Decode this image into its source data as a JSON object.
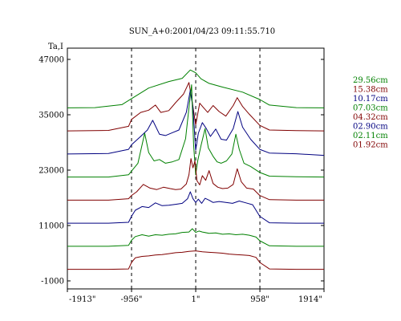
{
  "chart_data": {
    "type": "line",
    "title": "SUN_A+0:2001/04/23 09:11:55.710",
    "ylabel": "Ta,I",
    "xlabel": "",
    "xlim": [
      -1913,
      1914
    ],
    "ylim": [
      -1000,
      47000
    ],
    "x_ticks": [
      -1913,
      -956,
      1,
      958,
      1914
    ],
    "x_tick_labels": [
      "-1913\"",
      "-956\"",
      "1\"",
      "958\"",
      "1914\""
    ],
    "y_ticks": [
      -1000,
      11000,
      23000,
      35000,
      47000
    ],
    "y_tick_labels": [
      "-1000",
      "11000",
      "23000",
      "35000",
      "47000"
    ],
    "vertical_markers": [
      -956,
      1,
      958
    ],
    "grid": false,
    "legend_position": "right",
    "series": [
      {
        "name": "29.56cm",
        "color": "#008000",
        "offset": 36500,
        "x": [
          -1913,
          -1500,
          -1100,
          -956,
          -700,
          -400,
          -200,
          -80,
          0,
          80,
          200,
          400,
          700,
          956,
          1100,
          1500,
          1914
        ],
        "y": [
          0,
          50,
          700,
          2000,
          4300,
          5700,
          6400,
          8200,
          7600,
          6300,
          5300,
          4500,
          3400,
          1800,
          600,
          50,
          0
        ]
      },
      {
        "name": "15.38cm",
        "color": "#800000",
        "offset": 31500,
        "x": [
          -1913,
          -1300,
          -1000,
          -956,
          -820,
          -700,
          -600,
          -520,
          -400,
          -300,
          -180,
          -100,
          -50,
          0,
          60,
          120,
          180,
          260,
          350,
          450,
          560,
          620,
          700,
          800,
          956,
          1100,
          1500,
          1914
        ],
        "y": [
          0,
          100,
          1000,
          2500,
          4000,
          4500,
          5600,
          4000,
          4400,
          6100,
          8000,
          10500,
          6200,
          1300,
          6000,
          5000,
          4000,
          5500,
          4200,
          3200,
          5500,
          7200,
          5300,
          3600,
          1200,
          200,
          50,
          0
        ]
      },
      {
        "name": "10.17cm",
        "color": "#000080",
        "offset": 26500,
        "x": [
          -1913,
          -1300,
          -1000,
          -956,
          -820,
          -720,
          -640,
          -540,
          -450,
          -350,
          -250,
          -140,
          -80,
          -40,
          0,
          40,
          100,
          160,
          220,
          300,
          380,
          460,
          560,
          630,
          700,
          820,
          956,
          1100,
          1500,
          1914
        ],
        "y": [
          0,
          100,
          1000,
          2000,
          3800,
          5200,
          7300,
          4300,
          4000,
          4600,
          5200,
          9000,
          13800,
          10000,
          800,
          4500,
          6800,
          5500,
          3800,
          5400,
          3200,
          3000,
          5500,
          9200,
          5800,
          3200,
          1000,
          200,
          50,
          -300
        ]
      },
      {
        "name": "07.03cm",
        "color": "#008000",
        "offset": 21500,
        "x": [
          -1913,
          -1300,
          -1000,
          -956,
          -860,
          -760,
          -700,
          -620,
          -540,
          -450,
          -350,
          -250,
          -150,
          -100,
          -60,
          -30,
          0,
          30,
          80,
          140,
          190,
          260,
          320,
          380,
          460,
          540,
          600,
          650,
          720,
          820,
          956,
          1100,
          1500,
          1914
        ],
        "y": [
          0,
          0,
          500,
          1300,
          3000,
          9500,
          5300,
          3500,
          3800,
          3000,
          3300,
          3800,
          8300,
          15000,
          20000,
          7000,
          500,
          3500,
          6800,
          10500,
          6300,
          4500,
          3300,
          3000,
          3500,
          5000,
          9300,
          6000,
          3000,
          2300,
          1000,
          200,
          50,
          0
        ]
      },
      {
        "name": "04.32cm",
        "color": "#800000",
        "offset": 16500,
        "x": [
          -1913,
          -1300,
          -1000,
          -956,
          -880,
          -780,
          -680,
          -580,
          -480,
          -380,
          -300,
          -220,
          -140,
          -100,
          -70,
          -40,
          -10,
          20,
          60,
          100,
          150,
          200,
          260,
          330,
          400,
          480,
          560,
          620,
          680,
          760,
          860,
          956,
          1100,
          1500,
          1914
        ],
        "y": [
          0,
          0,
          300,
          1000,
          1800,
          3400,
          2600,
          2300,
          2800,
          2500,
          2300,
          2400,
          3500,
          5500,
          9000,
          7000,
          8500,
          4200,
          3300,
          5300,
          4300,
          6400,
          3600,
          2800,
          2500,
          2600,
          3400,
          6800,
          4000,
          2600,
          2400,
          1000,
          100,
          0,
          0
        ]
      },
      {
        "name": "02.90cm",
        "color": "#000080",
        "offset": 11500,
        "x": [
          -1913,
          -1300,
          -1000,
          -956,
          -900,
          -800,
          -700,
          -600,
          -500,
          -400,
          -300,
          -200,
          -120,
          -80,
          -40,
          0,
          40,
          90,
          140,
          200,
          260,
          350,
          450,
          550,
          650,
          750,
          850,
          956,
          1100,
          1500,
          1914
        ],
        "y": [
          0,
          0,
          200,
          1500,
          2800,
          3600,
          3400,
          4400,
          3800,
          3900,
          4100,
          4300,
          5300,
          6800,
          5300,
          4500,
          5200,
          4300,
          5400,
          5000,
          4500,
          4700,
          4500,
          4300,
          4800,
          4400,
          4000,
          1500,
          100,
          0,
          0
        ]
      },
      {
        "name": "02.11cm",
        "color": "#008000",
        "offset": 6500,
        "x": [
          -1913,
          -1300,
          -1000,
          -956,
          -900,
          -800,
          -700,
          -600,
          -500,
          -400,
          -300,
          -200,
          -100,
          -50,
          0,
          50,
          100,
          200,
          300,
          400,
          500,
          600,
          700,
          800,
          900,
          956,
          1100,
          1500,
          1914
        ],
        "y": [
          0,
          0,
          200,
          1300,
          2100,
          2500,
          2200,
          2500,
          2400,
          2600,
          2700,
          3000,
          3100,
          3800,
          3000,
          3300,
          3100,
          2800,
          2900,
          2600,
          2700,
          2500,
          2600,
          2400,
          2000,
          1200,
          100,
          0,
          0
        ]
      },
      {
        "name": "01.92cm",
        "color": "#800000",
        "offset": 1500,
        "x": [
          -1913,
          -1300,
          -1000,
          -956,
          -900,
          -800,
          -700,
          -600,
          -500,
          -400,
          -300,
          -200,
          -100,
          0,
          100,
          200,
          300,
          400,
          500,
          600,
          700,
          800,
          900,
          956,
          1100,
          1500,
          1914
        ],
        "y": [
          0,
          0,
          100,
          1500,
          2500,
          2800,
          2900,
          3100,
          3200,
          3400,
          3600,
          3700,
          3900,
          4000,
          3800,
          3700,
          3600,
          3500,
          3300,
          3200,
          3100,
          3000,
          2600,
          1500,
          100,
          0,
          0
        ]
      }
    ]
  }
}
